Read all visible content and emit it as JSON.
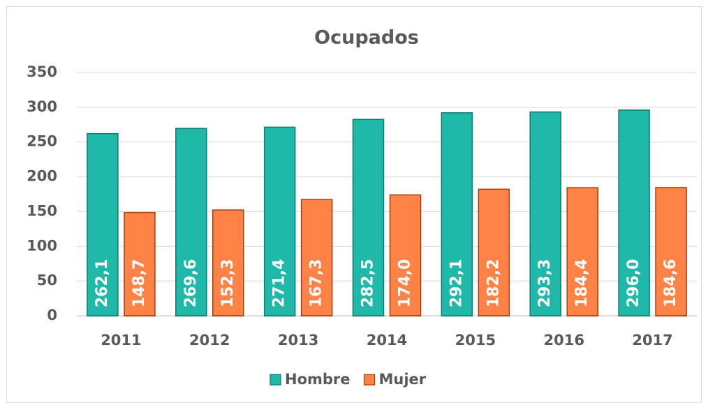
{
  "chart_data": {
    "type": "bar",
    "title": "Ocupados",
    "categories": [
      "2011",
      "2012",
      "2013",
      "2014",
      "2015",
      "2016",
      "2017"
    ],
    "series": [
      {
        "name": "Hombre",
        "color": "#20b8a8",
        "values": [
          262.1,
          269.6,
          271.4,
          282.5,
          292.1,
          293.3,
          296.0
        ],
        "value_labels": [
          "262,1",
          "269,6",
          "271,4",
          "282,5",
          "292,1",
          "293,3",
          "296,0"
        ]
      },
      {
        "name": "Mujer",
        "color": "#ff8247",
        "values": [
          148.7,
          152.3,
          167.3,
          174.0,
          182.2,
          184.4,
          184.6
        ],
        "value_labels": [
          "148,7",
          "152,3",
          "167,3",
          "174,0",
          "182,2",
          "184,4",
          "184,6"
        ]
      }
    ],
    "ylim": [
      0,
      350
    ],
    "yticks": [
      0,
      50,
      100,
      150,
      200,
      250,
      300,
      350
    ],
    "grid": true,
    "legend": "bottom"
  }
}
